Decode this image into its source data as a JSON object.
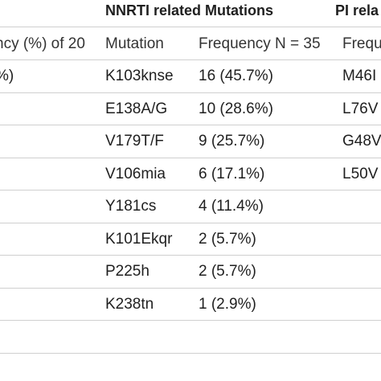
{
  "table": {
    "group_headers": {
      "nnrti": "NNRTI related Mutations",
      "pi": "PI rela"
    },
    "sub_headers": {
      "left_partial": "ncy (%) of 20",
      "mutation": "Mutation",
      "frequency": "Frequency N = 35",
      "pi_partial": "Frequ"
    },
    "rows": [
      {
        "left": "%)",
        "mutation": "K103knse",
        "frequency": "16 (45.7%)",
        "pi": "M46I"
      },
      {
        "left": ")",
        "mutation": "E138A/G",
        "frequency": "10 (28.6%)",
        "pi": "L76V"
      },
      {
        "left": ")",
        "mutation": "V179T/F",
        "frequency": "9 (25.7%)",
        "pi": "G48V"
      },
      {
        "left": ")",
        "mutation": "V106mia",
        "frequency": "6 (17.1%)",
        "pi": "L50V"
      },
      {
        "left": ")",
        "mutation": "Y181cs",
        "frequency": "4 (11.4%)",
        "pi": ""
      },
      {
        "left": ")",
        "mutation": "K101Ekqr",
        "frequency": "2 (5.7%)",
        "pi": ""
      },
      {
        "left": ")",
        "mutation": "P225h",
        "frequency": "2 (5.7%)",
        "pi": ""
      },
      {
        "left": ")",
        "mutation": "K238tn",
        "frequency": "1 (2.9%)",
        "pi": ""
      },
      {
        "left": ")",
        "mutation": "",
        "frequency": "",
        "pi": ""
      }
    ]
  }
}
